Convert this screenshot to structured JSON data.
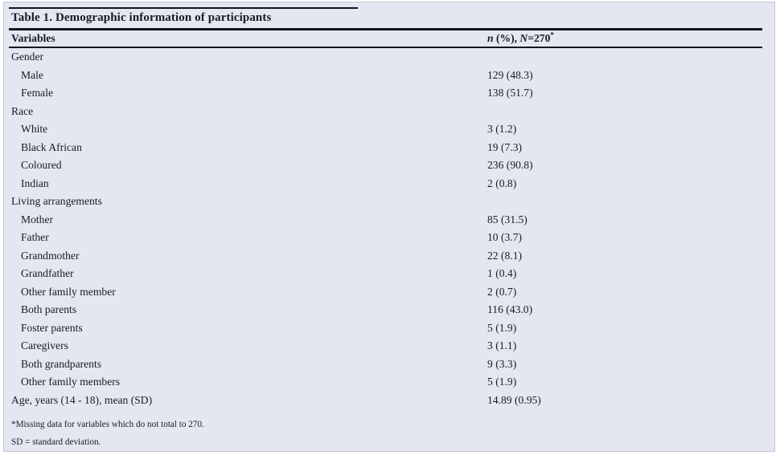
{
  "table": {
    "title": "Table 1. Demographic information of participants",
    "header": {
      "variables": "Variables",
      "n_italic": "n",
      "mid": " (%), ",
      "N_italic": "N",
      "eq_value": "=270",
      "footnote_marker": "*"
    },
    "rows": [
      {
        "label": "Gender",
        "value": "",
        "indent": false
      },
      {
        "label": "Male",
        "value": "129 (48.3)",
        "indent": true
      },
      {
        "label": "Female",
        "value": "138 (51.7)",
        "indent": true
      },
      {
        "label": "Race",
        "value": "",
        "indent": false
      },
      {
        "label": "White",
        "value": "3 (1.2)",
        "indent": true
      },
      {
        "label": "Black African",
        "value": "19 (7.3)",
        "indent": true
      },
      {
        "label": "Coloured",
        "value": "236 (90.8)",
        "indent": true
      },
      {
        "label": "Indian",
        "value": "2 (0.8)",
        "indent": true
      },
      {
        "label": "Living arrangements",
        "value": "",
        "indent": false
      },
      {
        "label": "Mother",
        "value": "85 (31.5)",
        "indent": true
      },
      {
        "label": "Father",
        "value": "10 (3.7)",
        "indent": true
      },
      {
        "label": "Grandmother",
        "value": "22 (8.1)",
        "indent": true
      },
      {
        "label": "Grandfather",
        "value": "1 (0.4)",
        "indent": true
      },
      {
        "label": "Other family member",
        "value": "2 (0.7)",
        "indent": true
      },
      {
        "label": "Both parents",
        "value": "116 (43.0)",
        "indent": true
      },
      {
        "label": "Foster parents",
        "value": "5 (1.9)",
        "indent": true
      },
      {
        "label": "Caregivers",
        "value": "3 (1.1)",
        "indent": true
      },
      {
        "label": "Both grandparents",
        "value": "9 (3.3)",
        "indent": true
      },
      {
        "label": "Other family members",
        "value": "5 (1.9)",
        "indent": true
      },
      {
        "label": "Age, years (14 - 18), mean (SD)",
        "value": "14.89 (0.95)",
        "indent": false
      }
    ],
    "footnotes": [
      "*Missing data for variables which do not total to 270.",
      "SD = standard deviation."
    ],
    "colors": {
      "background": "#e4e7f2",
      "rule": "#14141d",
      "text": "#1a1a24",
      "frame_border": "#c2c7d4"
    }
  }
}
